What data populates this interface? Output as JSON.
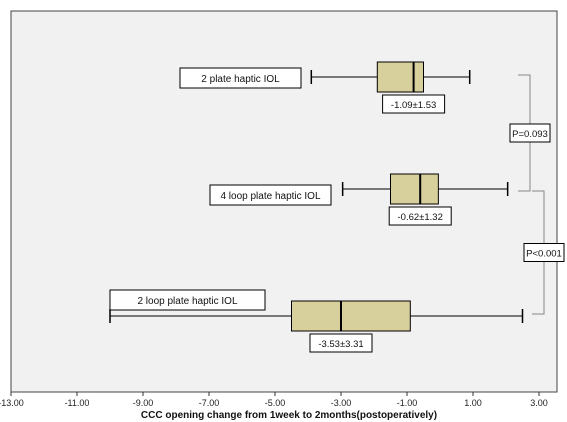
{
  "chart_data": {
    "type": "boxplot",
    "orientation": "horizontal",
    "xlabel": "CCC opening change from 1week to 2months(postoperatively)",
    "xlim": [
      -13,
      4
    ],
    "xticks": [
      "-13.00",
      "-11.00",
      "-9.00",
      "-7.00",
      "-5.00",
      "-3.00",
      "-1.00",
      "1.00",
      "3.00"
    ],
    "xtick_values": [
      -13,
      -11,
      -9,
      -7,
      -5,
      -3,
      -1,
      1,
      3
    ],
    "grid": false,
    "colors": {
      "box_fill": "#d7d09c",
      "plot_bg": "#f1f1f1",
      "line": "#000000"
    },
    "groups": [
      {
        "name": "2 plate haptic IOL",
        "min": -3.9,
        "q1": -1.9,
        "median": -0.8,
        "q3": -0.5,
        "max": 0.9,
        "stat_label": "-1.09±1.53"
      },
      {
        "name": "4 loop plate haptic IOL",
        "min": -2.95,
        "q1": -1.5,
        "median": -0.6,
        "q3": -0.05,
        "max": 2.05,
        "stat_label": "-0.62±1.32"
      },
      {
        "name": "2 loop plate haptic IOL",
        "min": -10.0,
        "q1": -4.5,
        "median": -3.0,
        "q3": -0.9,
        "max": 2.5,
        "stat_label": "-3.53±3.31"
      }
    ],
    "annotations": [
      {
        "between": [
          0,
          1
        ],
        "text": "P=0.093"
      },
      {
        "between": [
          1,
          2
        ],
        "text": "P<0.001"
      }
    ]
  }
}
